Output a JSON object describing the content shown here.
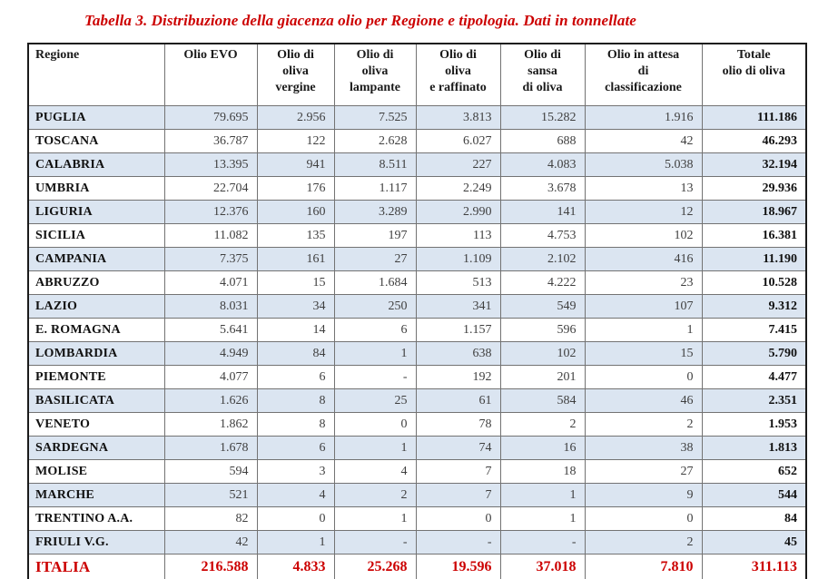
{
  "title": "Tabella 3. Distribuzione della giacenza olio per Regione e tipologia. Dati in tonnellate",
  "colors": {
    "title_red": "#cc0000",
    "total_red": "#cc0000",
    "row_alt_blue": "#dbe5f1",
    "grid_line": "#737373",
    "outer_border": "#1a1a1a",
    "number_text": "#3f3f3f"
  },
  "table": {
    "columns": [
      "Regione",
      "Olio EVO",
      "Olio di\noliva\nvergine",
      "Olio di\noliva\nlampante",
      "Olio di\noliva\ne raffinato",
      "Olio di\nsansa\ndi oliva",
      "Olio in attesa\ndi\nclassificazione",
      "Totale\nolio di oliva"
    ],
    "rows": [
      {
        "region": "PUGLIA",
        "values": [
          "79.695",
          "2.956",
          "7.525",
          "3.813",
          "15.282",
          "1.916",
          "111.186"
        ]
      },
      {
        "region": "TOSCANA",
        "values": [
          "36.787",
          "122",
          "2.628",
          "6.027",
          "688",
          "42",
          "46.293"
        ]
      },
      {
        "region": "CALABRIA",
        "values": [
          "13.395",
          "941",
          "8.511",
          "227",
          "4.083",
          "5.038",
          "32.194"
        ]
      },
      {
        "region": "UMBRIA",
        "values": [
          "22.704",
          "176",
          "1.117",
          "2.249",
          "3.678",
          "13",
          "29.936"
        ]
      },
      {
        "region": "LIGURIA",
        "values": [
          "12.376",
          "160",
          "3.289",
          "2.990",
          "141",
          "12",
          "18.967"
        ]
      },
      {
        "region": "SICILIA",
        "values": [
          "11.082",
          "135",
          "197",
          "113",
          "4.753",
          "102",
          "16.381"
        ]
      },
      {
        "region": "CAMPANIA",
        "values": [
          "7.375",
          "161",
          "27",
          "1.109",
          "2.102",
          "416",
          "11.190"
        ]
      },
      {
        "region": "ABRUZZO",
        "values": [
          "4.071",
          "15",
          "1.684",
          "513",
          "4.222",
          "23",
          "10.528"
        ]
      },
      {
        "region": "LAZIO",
        "values": [
          "8.031",
          "34",
          "250",
          "341",
          "549",
          "107",
          "9.312"
        ]
      },
      {
        "region": "E. ROMAGNA",
        "values": [
          "5.641",
          "14",
          "6",
          "1.157",
          "596",
          "1",
          "7.415"
        ]
      },
      {
        "region": "LOMBARDIA",
        "values": [
          "4.949",
          "84",
          "1",
          "638",
          "102",
          "15",
          "5.790"
        ]
      },
      {
        "region": "PIEMONTE",
        "values": [
          "4.077",
          "6",
          "-",
          "192",
          "201",
          "0",
          "4.477"
        ]
      },
      {
        "region": "BASILICATA",
        "values": [
          "1.626",
          "8",
          "25",
          "61",
          "584",
          "46",
          "2.351"
        ]
      },
      {
        "region": "VENETO",
        "values": [
          "1.862",
          "8",
          "0",
          "78",
          "2",
          "2",
          "1.953"
        ]
      },
      {
        "region": "SARDEGNA",
        "values": [
          "1.678",
          "6",
          "1",
          "74",
          "16",
          "38",
          "1.813"
        ]
      },
      {
        "region": "MOLISE",
        "values": [
          "594",
          "3",
          "4",
          "7",
          "18",
          "27",
          "652"
        ]
      },
      {
        "region": "MARCHE",
        "values": [
          "521",
          "4",
          "2",
          "7",
          "1",
          "9",
          "544"
        ]
      },
      {
        "region": "TRENTINO A.A.",
        "values": [
          "82",
          "0",
          "1",
          "0",
          "1",
          "0",
          "84"
        ]
      },
      {
        "region": "FRIULI V.G.",
        "values": [
          "42",
          "1",
          "-",
          "-",
          "-",
          "2",
          "45"
        ]
      }
    ],
    "total_row": {
      "region": "ITALIA",
      "values": [
        "216.588",
        "4.833",
        "25.268",
        "19.596",
        "37.018",
        "7.810",
        "311.113"
      ]
    }
  }
}
